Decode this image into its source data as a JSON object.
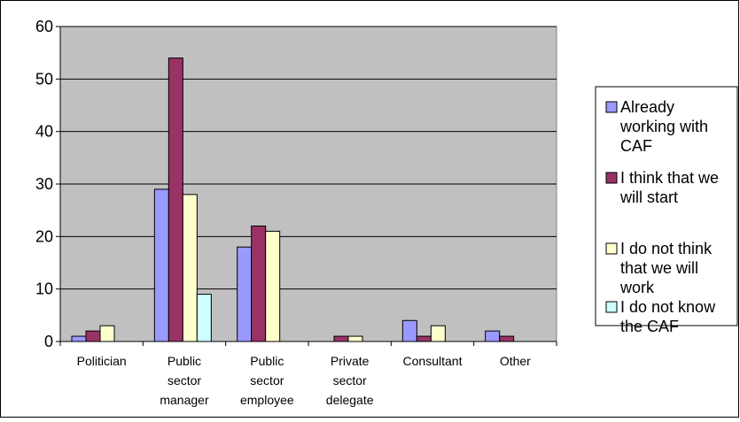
{
  "chart_data": {
    "type": "bar",
    "title": "",
    "xlabel": "",
    "ylabel": "",
    "ylim": [
      0,
      60
    ],
    "yticks": [
      0,
      10,
      20,
      30,
      40,
      50,
      60
    ],
    "grid": true,
    "legend_position": "right",
    "categories": [
      "Politician",
      "Public sector manager",
      "Public sector employee",
      "Private sector delegate",
      "Consultant",
      "Other"
    ],
    "category_labels": [
      [
        "Politician"
      ],
      [
        "Public",
        "sector",
        "manager"
      ],
      [
        "Public",
        "sector",
        "employee"
      ],
      [
        "Private",
        "sector",
        "delegate"
      ],
      [
        "Consultant"
      ],
      [
        "Other"
      ]
    ],
    "series": [
      {
        "name": "Already working with CAF",
        "legend_lines": [
          "Already",
          "working with",
          "CAF"
        ],
        "color": "#9999FF",
        "values": [
          1,
          29,
          18,
          0,
          4,
          2
        ]
      },
      {
        "name": "I think that we will start",
        "legend_lines": [
          "I think that we",
          "will start"
        ],
        "color": "#993366",
        "values": [
          2,
          54,
          22,
          1,
          1,
          1
        ]
      },
      {
        "name": "I do not think that we will work",
        "legend_lines": [
          "I do not think",
          "that we will",
          "work"
        ],
        "color": "#FFFFCC",
        "values": [
          3,
          28,
          21,
          1,
          3,
          0
        ]
      },
      {
        "name": "I do not know the CAF",
        "legend_lines": [
          "I do not know",
          "the CAF"
        ],
        "color": "#CCFFFF",
        "values": [
          0,
          9,
          0,
          0,
          0,
          0
        ]
      }
    ],
    "plot_background": "#C0C0C0"
  }
}
